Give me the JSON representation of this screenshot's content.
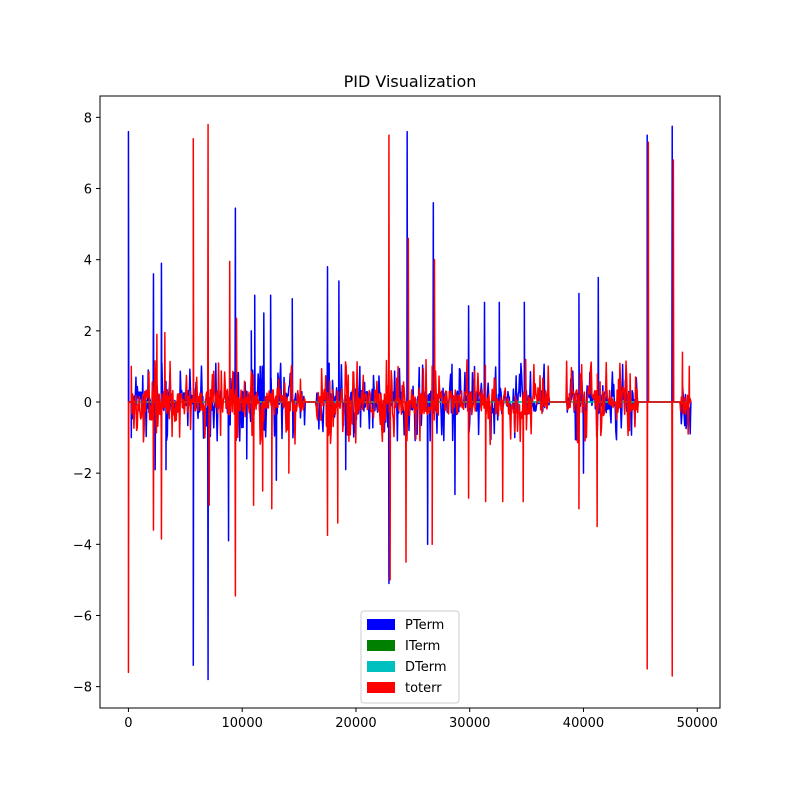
{
  "chart_data": {
    "type": "line",
    "title": "PID Visualization",
    "xlabel": "",
    "ylabel": "",
    "xlim": [
      -2500,
      52000
    ],
    "ylim": [
      -8.6,
      8.6
    ],
    "x_ticks": [
      0,
      10000,
      20000,
      30000,
      40000,
      50000
    ],
    "x_tick_labels": [
      "0",
      "10000",
      "20000",
      "30000",
      "40000",
      "50000"
    ],
    "y_ticks": [
      -8,
      -6,
      -4,
      -2,
      0,
      2,
      4,
      6,
      8
    ],
    "y_tick_labels": [
      "−8",
      "−6",
      "−4",
      "−2",
      "0",
      "2",
      "4",
      "6",
      "8"
    ],
    "grid": false,
    "legend_placement": "lower center",
    "legend": [
      "PTerm",
      "ITerm",
      "DTerm",
      "toterr"
    ],
    "series": [
      {
        "name": "PTerm",
        "color": "#0000ff",
        "spikes": [
          [
            0,
            7.6
          ],
          [
            250,
            -1.0
          ],
          [
            2200,
            3.6
          ],
          [
            2350,
            -1.9
          ],
          [
            2900,
            3.9
          ],
          [
            3300,
            -1.9
          ],
          [
            5700,
            -7.4
          ],
          [
            7000,
            -7.8
          ],
          [
            8800,
            -3.9
          ],
          [
            9400,
            5.45
          ],
          [
            10400,
            -1.6
          ],
          [
            10800,
            2.0
          ],
          [
            11100,
            3.0
          ],
          [
            11900,
            2.5
          ],
          [
            12500,
            3.0
          ],
          [
            13000,
            -2.2
          ],
          [
            14400,
            2.9
          ],
          [
            17500,
            3.8
          ],
          [
            18500,
            3.4
          ],
          [
            19100,
            -1.9
          ],
          [
            22900,
            -5.1
          ],
          [
            24500,
            7.6
          ],
          [
            26300,
            -4.0
          ],
          [
            26800,
            5.6
          ],
          [
            28700,
            -2.6
          ],
          [
            29900,
            2.7
          ],
          [
            31300,
            2.8
          ],
          [
            32600,
            2.8
          ],
          [
            34800,
            2.8
          ],
          [
            39600,
            3.05
          ],
          [
            40000,
            -2.0
          ],
          [
            41300,
            3.5
          ],
          [
            45600,
            7.5
          ],
          [
            47800,
            7.75
          ]
        ]
      },
      {
        "name": "ITerm",
        "color": "#008000",
        "spikes": []
      },
      {
        "name": "DTerm",
        "color": "#00bfbf",
        "spikes": []
      },
      {
        "name": "toterr",
        "color": "#ff0000",
        "spikes": [
          [
            0,
            -7.6
          ],
          [
            250,
            1.0
          ],
          [
            2200,
            -3.6
          ],
          [
            2500,
            1.9
          ],
          [
            2900,
            -3.85
          ],
          [
            3200,
            1.95
          ],
          [
            5700,
            7.4
          ],
          [
            7000,
            7.8
          ],
          [
            7100,
            -2.9
          ],
          [
            8900,
            3.95
          ],
          [
            9400,
            -5.45
          ],
          [
            9500,
            2.35
          ],
          [
            11000,
            -2.9
          ],
          [
            11800,
            -2.5
          ],
          [
            12600,
            -3.0
          ],
          [
            14100,
            -2.0
          ],
          [
            17500,
            -3.75
          ],
          [
            18400,
            -3.4
          ],
          [
            22900,
            7.5
          ],
          [
            23000,
            -5.0
          ],
          [
            24600,
            4.6
          ],
          [
            24400,
            -4.5
          ],
          [
            26700,
            -4.0
          ],
          [
            26900,
            4.0
          ],
          [
            29900,
            -2.7
          ],
          [
            31400,
            -2.8
          ],
          [
            32900,
            -2.8
          ],
          [
            34700,
            -2.8
          ],
          [
            39600,
            -3.0
          ],
          [
            41200,
            -3.5
          ],
          [
            45600,
            -7.5
          ],
          [
            45700,
            7.3
          ],
          [
            47800,
            -7.7
          ],
          [
            47900,
            6.8
          ],
          [
            48700,
            1.4
          ],
          [
            49300,
            1.0
          ]
        ]
      }
    ]
  }
}
